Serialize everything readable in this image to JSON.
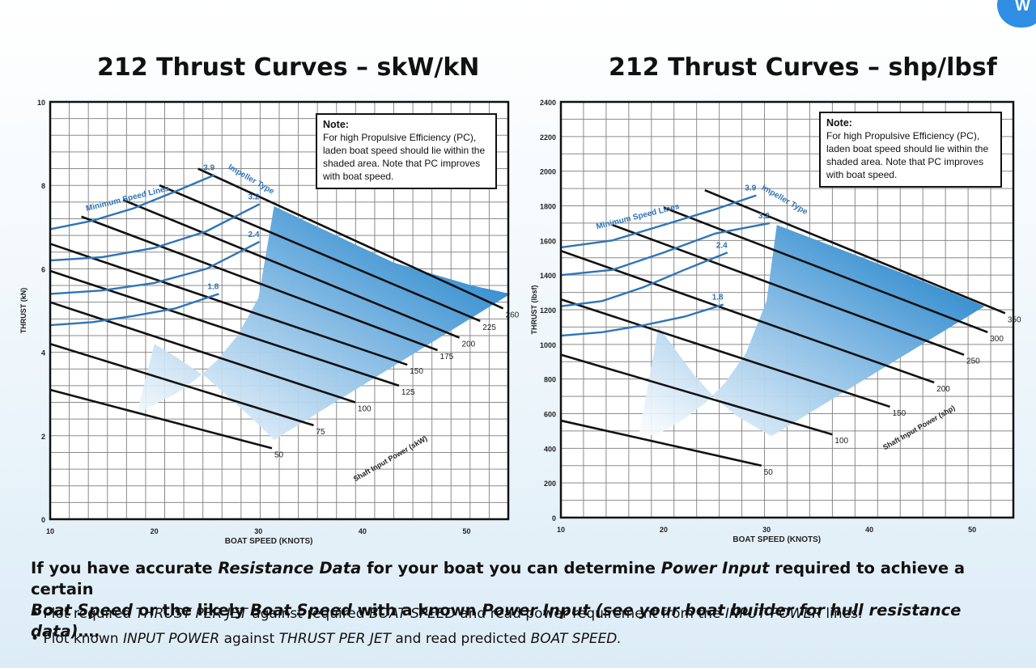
{
  "page": {
    "brand_icon": "W",
    "paragraph": [
      {
        "t": "If you have accurate ",
        "i": false
      },
      {
        "t": "Resistance Data",
        "i": true
      },
      {
        "t": " for your boat you can determine ",
        "i": false
      },
      {
        "t": "Power Input",
        "i": true
      },
      {
        "t": " required to achieve a certain ",
        "i": false
      },
      {
        "t": "Boat Speed",
        "i": true
      },
      {
        "t": " or the likely ",
        "i": false
      },
      {
        "t": "Boat Speed",
        "i": true
      },
      {
        "t": " with a known ",
        "i": false
      },
      {
        "t": "Power Input (see your boat builder for hull resistance data)",
        "i": true
      },
      {
        "t": "….",
        "i": false
      }
    ],
    "bullets": [
      [
        {
          "t": "• Plot required ",
          "i": false
        },
        {
          "t": "THRUST PER JET",
          "i": true
        },
        {
          "t": " against required ",
          "i": false
        },
        {
          "t": "BOAT SPEED",
          "i": true
        },
        {
          "t": " and read power requirement from the ",
          "i": false
        },
        {
          "t": "INPUT POWER",
          "i": true
        },
        {
          "t": " lines.",
          "i": false
        }
      ],
      [
        {
          "t": "• Plot known ",
          "i": false
        },
        {
          "t": "INPUT POWER",
          "i": true
        },
        {
          "t": " against ",
          "i": false
        },
        {
          "t": "THRUST PER JET",
          "i": true
        },
        {
          "t": " and read predicted ",
          "i": false
        },
        {
          "t": "BOAT SPEED.",
          "i": true
        }
      ]
    ]
  },
  "chart_data": [
    {
      "type": "line",
      "title": "212 Thrust Curves – skW/kN",
      "xlabel": "BOAT SPEED (KNOTS)",
      "ylabel": "THRUST (kN)",
      "xlim": [
        10,
        54
      ],
      "ylim": [
        0,
        10
      ],
      "xticks": [
        "10",
        "20",
        "30",
        "40",
        "50"
      ],
      "yticks": [
        "0",
        "2",
        "4",
        "6",
        "8",
        "10"
      ],
      "grid": true,
      "note_title": "Note:",
      "note_text": [
        "For high Propulsive Efficiency (PC),",
        "laden boat speed should lie within the",
        "shaded area.  Note that PC improves",
        "with boat speed."
      ],
      "power_label": "Shaft Input Power (skW)",
      "min_speed_label": "Minimum Speed Lines",
      "impeller_label": "Impeller Type",
      "power_series": [
        {
          "name": "50",
          "x": [
            10,
            31.3
          ],
          "y": [
            3.1,
            1.7
          ]
        },
        {
          "name": "75",
          "x": [
            10,
            35.3
          ],
          "y": [
            4.2,
            2.25
          ]
        },
        {
          "name": "100",
          "x": [
            10,
            39.3
          ],
          "y": [
            5.2,
            2.8
          ]
        },
        {
          "name": "125",
          "x": [
            10,
            43.5
          ],
          "y": [
            5.95,
            3.2
          ]
        },
        {
          "name": "150",
          "x": [
            10,
            44.3
          ],
          "y": [
            6.6,
            3.7
          ]
        },
        {
          "name": "175",
          "x": [
            13,
            47.2
          ],
          "y": [
            7.25,
            4.05
          ]
        },
        {
          "name": "200",
          "x": [
            17,
            49.3
          ],
          "y": [
            7.65,
            4.35
          ]
        },
        {
          "name": "225",
          "x": [
            20.5,
            51.3
          ],
          "y": [
            8.0,
            4.75
          ]
        },
        {
          "name": "260",
          "x": [
            24.2,
            53.5
          ],
          "y": [
            8.4,
            5.05
          ]
        }
      ],
      "min_speed_series": [
        {
          "name": "1.8",
          "x": [
            10,
            14,
            18,
            22,
            26.2
          ],
          "y": [
            4.65,
            4.72,
            4.87,
            5.05,
            5.4
          ]
        },
        {
          "name": "2.4",
          "x": [
            10,
            15,
            20,
            25,
            30.1
          ],
          "y": [
            5.4,
            5.48,
            5.66,
            6.0,
            6.65
          ]
        },
        {
          "name": "3.2",
          "x": [
            10,
            15,
            20,
            25,
            30.1
          ],
          "y": [
            6.2,
            6.28,
            6.5,
            6.9,
            7.55
          ]
        },
        {
          "name": "3.9",
          "x": [
            10,
            14,
            18,
            22,
            25.8
          ],
          "y": [
            6.95,
            7.15,
            7.45,
            7.85,
            8.25
          ]
        }
      ],
      "shaded_region": {
        "x": [
          18.3,
          20,
          22,
          24,
          26,
          28,
          30,
          31.5,
          43,
          50.5,
          54.2,
          31.5,
          30.3,
          28.8,
          27,
          25,
          22,
          20
        ],
        "y": [
          2.5,
          2.75,
          3.0,
          3.35,
          3.8,
          4.4,
          5.3,
          7.5,
          6.15,
          5.6,
          5.4,
          1.9,
          2.2,
          2.55,
          2.95,
          3.4,
          3.9,
          4.2
        ]
      }
    },
    {
      "type": "line",
      "title": "212  Thrust Curves – shp/lbsf",
      "xlabel": "BOAT SPEED (KNOTS)",
      "ylabel": "THRUST (lbsf)",
      "xlim": [
        10,
        54
      ],
      "ylim": [
        0,
        2400
      ],
      "xticks": [
        "10",
        "20",
        "30",
        "40",
        "50"
      ],
      "yticks": [
        "0",
        "200",
        "400",
        "600",
        "800",
        "1000",
        "1200",
        "1400",
        "1600",
        "1800",
        "2000",
        "2200",
        "2400"
      ],
      "grid": true,
      "note_title": "Note:",
      "note_text": [
        "For high Propulsive Efficiency (PC),",
        "laden boat speed should lie within the",
        "shaded area.  Note that PC improves",
        "with boat speed."
      ],
      "power_label": "Shaft Input Power (shp)",
      "min_speed_label": "Minimum Speed Lines",
      "impeller_label": "Impeller Type",
      "power_series": [
        {
          "name": "50",
          "x": [
            10,
            29.5
          ],
          "y": [
            560,
            300
          ]
        },
        {
          "name": "100",
          "x": [
            10,
            36.4
          ],
          "y": [
            940,
            480
          ]
        },
        {
          "name": "150",
          "x": [
            10,
            42
          ],
          "y": [
            1260,
            640
          ]
        },
        {
          "name": "200",
          "x": [
            10,
            46.3
          ],
          "y": [
            1540,
            780
          ]
        },
        {
          "name": "250",
          "x": [
            15,
            49.2
          ],
          "y": [
            1690,
            940
          ]
        },
        {
          "name": "300",
          "x": [
            20,
            51.5
          ],
          "y": [
            1790,
            1070
          ]
        },
        {
          "name": "350",
          "x": [
            24,
            53.2
          ],
          "y": [
            1890,
            1180
          ]
        }
      ],
      "min_speed_series": [
        {
          "name": "1.8",
          "x": [
            10,
            14,
            18,
            22,
            25.8
          ],
          "y": [
            1050,
            1070,
            1110,
            1160,
            1230
          ]
        },
        {
          "name": "2.4",
          "x": [
            10,
            14,
            18,
            22,
            26.2
          ],
          "y": [
            1220,
            1250,
            1330,
            1430,
            1530
          ]
        },
        {
          "name": "3.2",
          "x": [
            10,
            15,
            20,
            25,
            30.3
          ],
          "y": [
            1400,
            1430,
            1530,
            1640,
            1700
          ]
        },
        {
          "name": "3.9",
          "x": [
            10,
            15,
            20,
            25,
            29
          ],
          "y": [
            1560,
            1600,
            1690,
            1780,
            1860
          ]
        }
      ],
      "shaded_region": {
        "x": [
          17.5,
          20,
          22,
          24,
          26,
          28,
          30,
          31,
          42,
          50,
          51.2,
          30.5,
          29,
          27,
          25,
          23,
          21,
          19.5
        ],
        "y": [
          450,
          500,
          570,
          660,
          780,
          950,
          1250,
          1690,
          1440,
          1250,
          1220,
          470,
          520,
          590,
          690,
          820,
          980,
          1100
        ]
      }
    }
  ]
}
